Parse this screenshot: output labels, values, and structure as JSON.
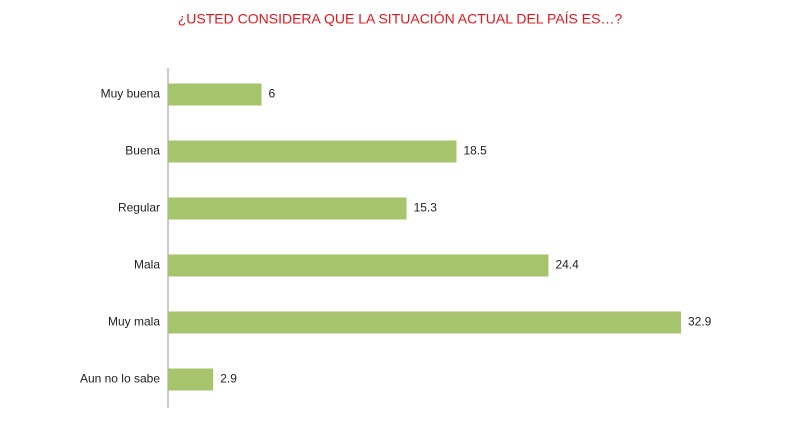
{
  "chart_data": {
    "type": "bar",
    "orientation": "horizontal",
    "title": "¿USTED CONSIDERA QUE LA SITUACIÓN ACTUAL DEL PAÍS ES…?",
    "categories": [
      "Muy buena",
      "Buena",
      "Regular",
      "Mala",
      "Muy mala",
      "Aun no lo sabe"
    ],
    "values": [
      6,
      18.5,
      15.3,
      24.4,
      32.9,
      2.9
    ],
    "color": "#a5c46b"
  }
}
